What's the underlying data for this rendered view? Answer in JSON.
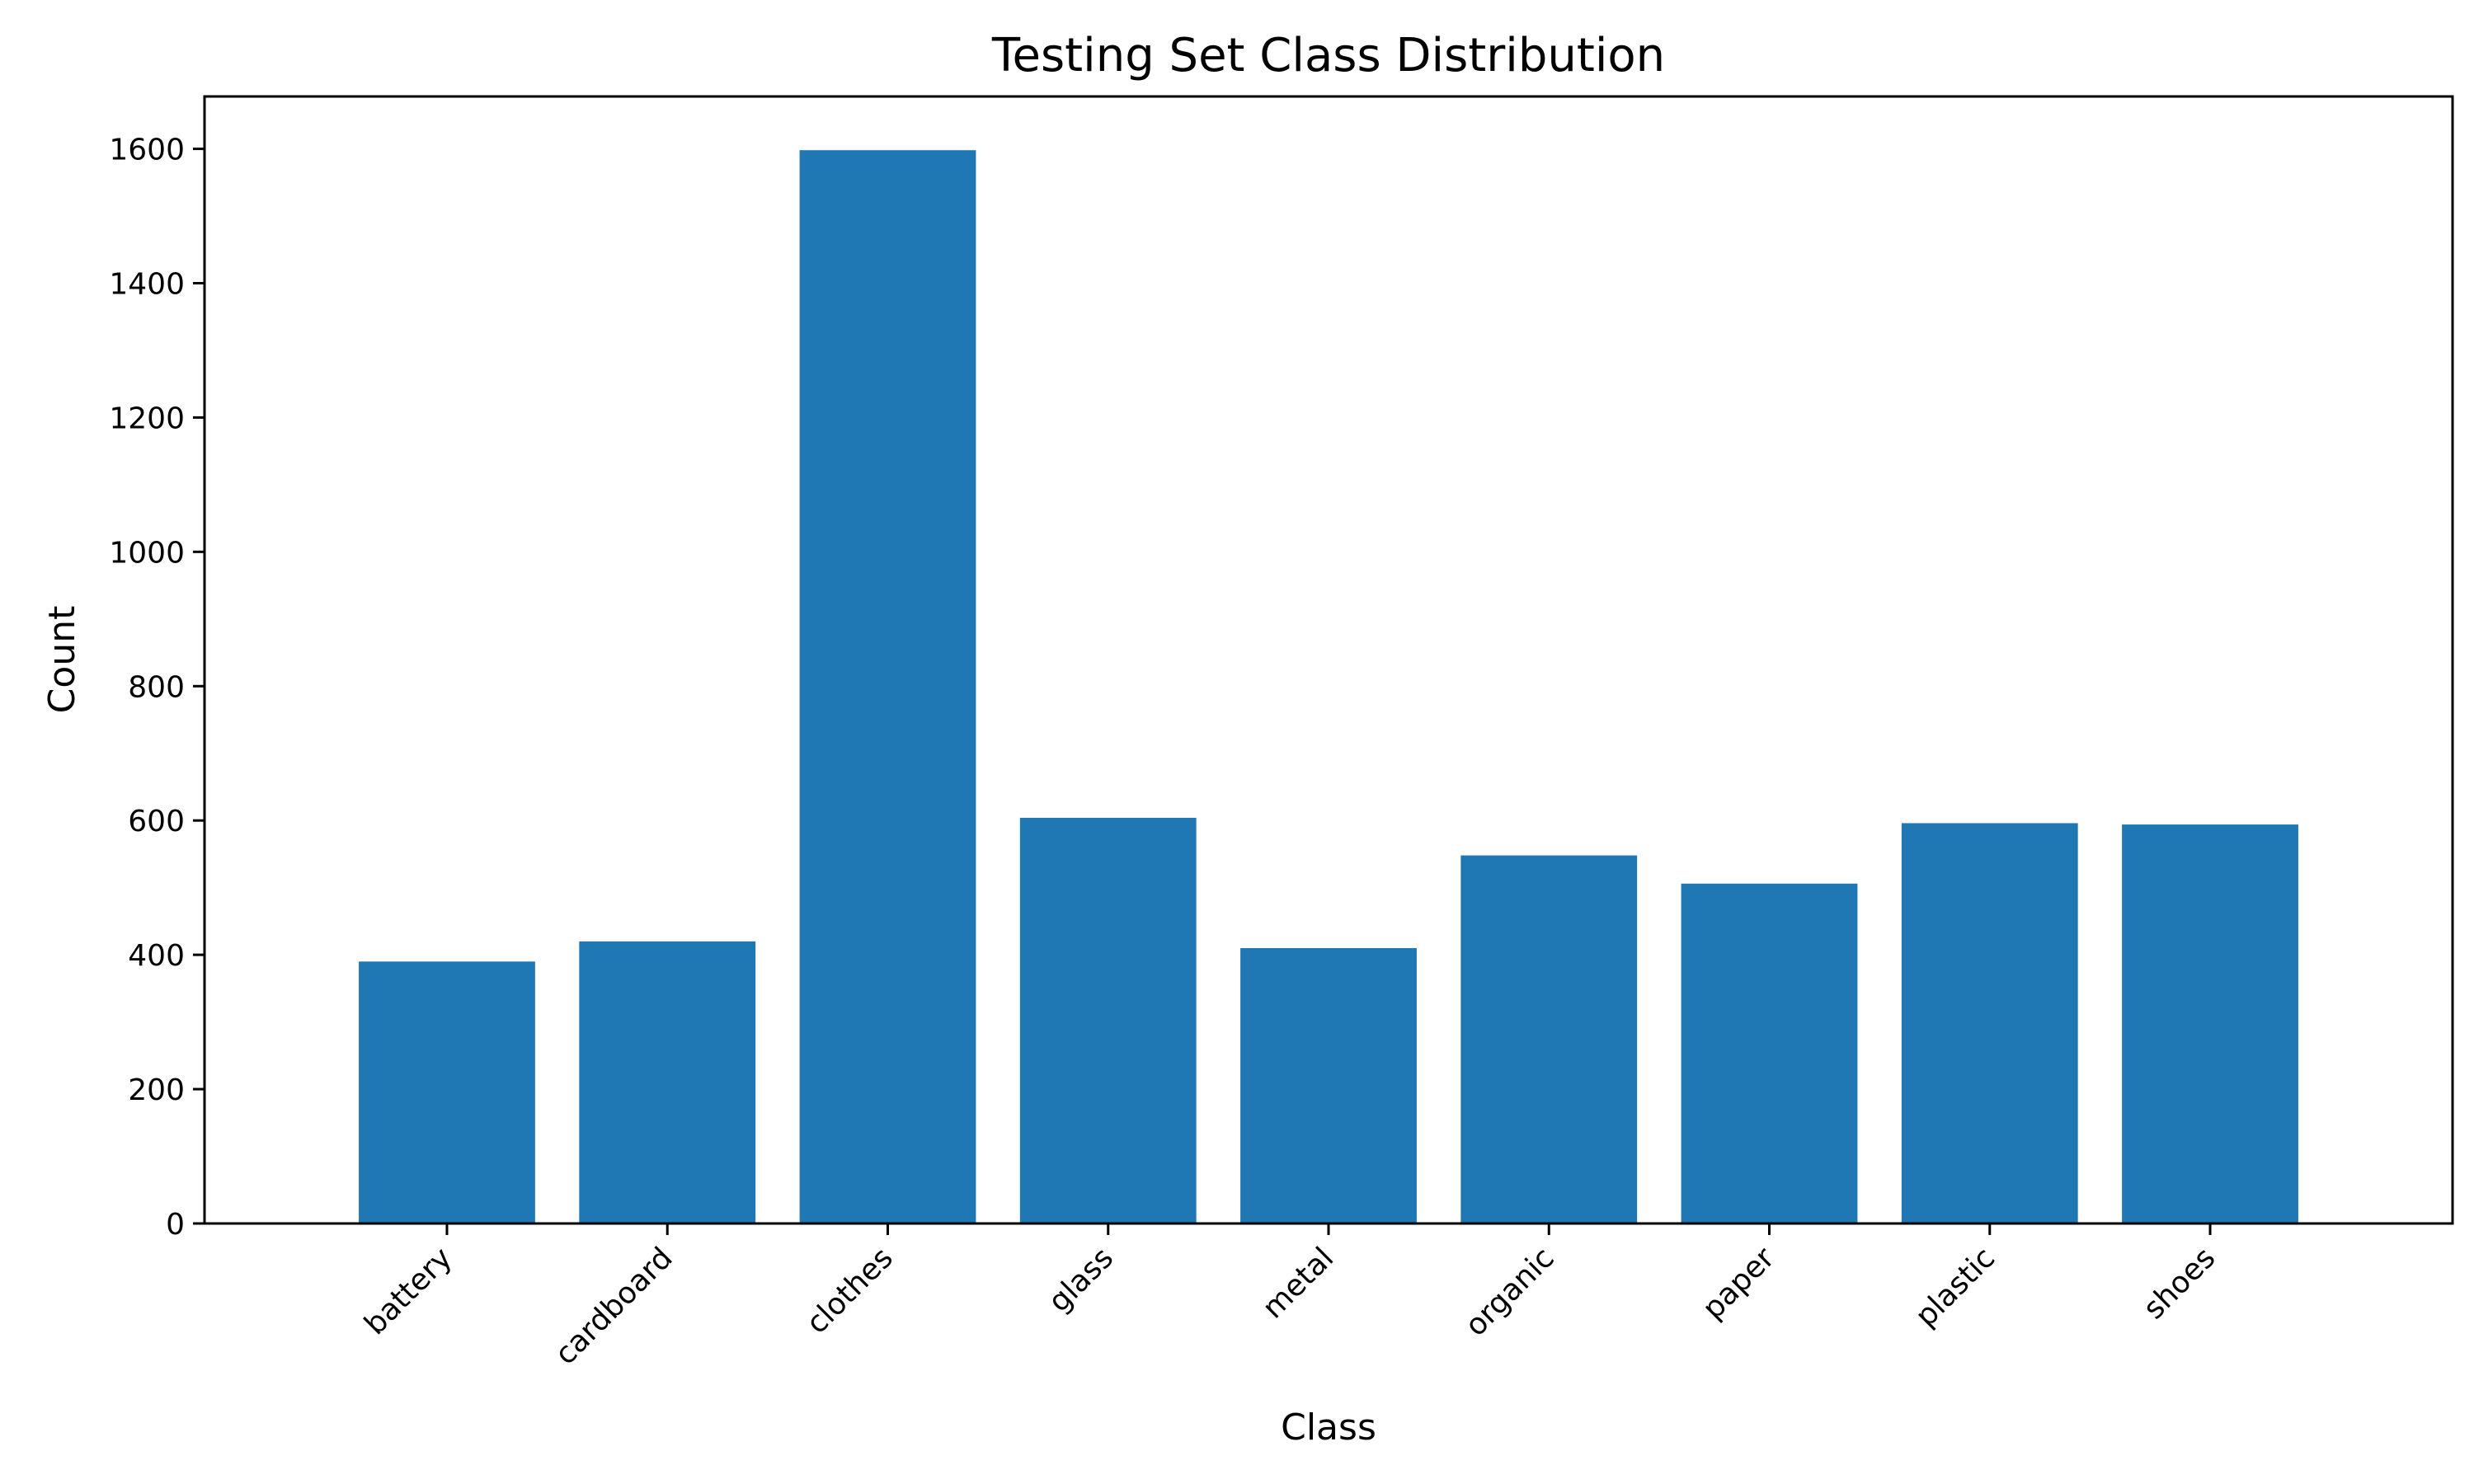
{
  "chart_data": {
    "type": "bar",
    "title": "Testing Set Class Distribution",
    "xlabel": "Class",
    "ylabel": "Count",
    "categories": [
      "battery",
      "cardboard",
      "clothes",
      "glass",
      "metal",
      "organic",
      "paper",
      "plastic",
      "shoes"
    ],
    "values": [
      390,
      420,
      1598,
      604,
      410,
      548,
      506,
      596,
      594
    ],
    "yticks": [
      0,
      200,
      400,
      600,
      800,
      1000,
      1200,
      1400,
      1600
    ],
    "ylim": [
      0,
      1678
    ],
    "bar_color": "#1f77b4",
    "grid": false,
    "legend": false
  }
}
